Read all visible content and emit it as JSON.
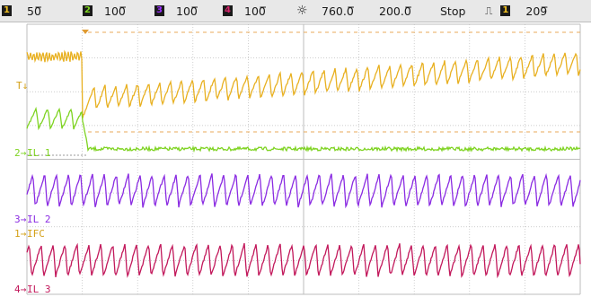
{
  "toolbar": {
    "ch1": {
      "num": "1",
      "scale": "50̅̅",
      "color": "#d4a017"
    },
    "ch2": {
      "num": "2",
      "scale": "100̅̅",
      "color": "#7ed321"
    },
    "ch3": {
      "num": "3",
      "scale": "100̅̅",
      "color": "#9b30ff"
    },
    "ch4": {
      "num": "4",
      "scale": "100̅̅",
      "color": "#d6246b"
    },
    "trigger_level_icon": "sun-icon",
    "timebase": "760.0̅̅",
    "sample": "200.0̅̅",
    "run_state": "Stop",
    "trigger_edge_icon": "pulse-edge-icon",
    "trigger_source": "1",
    "trigger_value": "209̅̅"
  },
  "markers": {
    "ch1_marker": "T↓",
    "ch2_marker": "2→",
    "ch3_marker": "3→",
    "ch4_marker": "4→",
    "ch1_ref_marker": "1→"
  },
  "labels": {
    "ch2": "IL 1",
    "ch3": "IL 2",
    "ch1": "IFC",
    "ch4": "IL 3"
  },
  "colors": {
    "ch1": "#e8b020",
    "ch2": "#7ed321",
    "ch3": "#8a2be2",
    "ch4": "#c2185b",
    "grid": "#bdbdbd",
    "ref_dash": "#e8a95a"
  }
}
